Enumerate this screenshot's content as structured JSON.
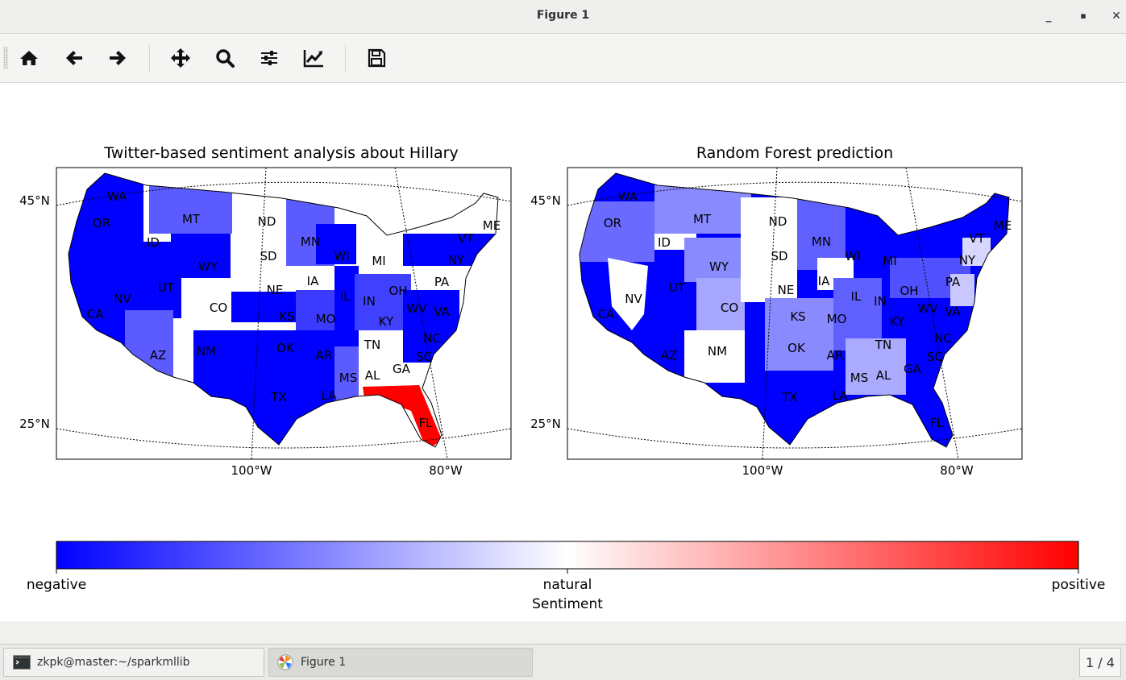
{
  "window": {
    "title": "Figure 1",
    "minimize_glyph": "_",
    "maximize_glyph": "▪",
    "close_glyph": "✕"
  },
  "toolbar": {
    "buttons": [
      {
        "name": "home-icon",
        "tooltip": "Home"
      },
      {
        "name": "back-arrow-icon",
        "tooltip": "Back"
      },
      {
        "name": "forward-arrow-icon",
        "tooltip": "Forward"
      },
      {
        "name": "pan-move-icon",
        "tooltip": "Pan"
      },
      {
        "name": "zoom-magnifier-icon",
        "tooltip": "Zoom"
      },
      {
        "name": "subplots-sliders-icon",
        "tooltip": "Subplots"
      },
      {
        "name": "edit-axes-chart-icon",
        "tooltip": "Customize"
      },
      {
        "name": "save-floppy-icon",
        "tooltip": "Save"
      }
    ]
  },
  "left_map": {
    "title": "Twitter-based sentiment analysis about Hillary",
    "lat_labels": [
      "45°N",
      "25°N"
    ],
    "lon_labels": [
      "100°W",
      "80°W"
    ],
    "state_labels": [
      "WA",
      "OR",
      "ID",
      "MT",
      "ND",
      "MN",
      "WI",
      "MI",
      "SD",
      "WY",
      "NV",
      "UT",
      "CO",
      "NE",
      "IA",
      "IL",
      "IN",
      "OH",
      "PA",
      "NY",
      "VT",
      "ME",
      "KS",
      "MO",
      "KY",
      "WV",
      "VA",
      "CA",
      "AZ",
      "NM",
      "OK",
      "AR",
      "TN",
      "NC",
      "SC",
      "MS",
      "AL",
      "GA",
      "TX",
      "LA",
      "FL"
    ]
  },
  "right_map": {
    "title": "Random Forest prediction",
    "lat_labels": [
      "45°N",
      "25°N"
    ],
    "lon_labels": [
      "100°W",
      "80°W"
    ],
    "state_labels": [
      "WA",
      "OR",
      "ID",
      "MT",
      "ND",
      "MN",
      "WI",
      "MI",
      "SD",
      "WY",
      "NV",
      "UT",
      "CO",
      "NE",
      "IA",
      "IL",
      "IN",
      "OH",
      "PA",
      "NY",
      "VT",
      "ME",
      "KS",
      "MO",
      "KY",
      "WV",
      "VA",
      "CA",
      "AZ",
      "NM",
      "OK",
      "AR",
      "TN",
      "NC",
      "SC",
      "MS",
      "AL",
      "GA",
      "TX",
      "LA",
      "FL"
    ]
  },
  "colorbar": {
    "label": "Sentiment",
    "tick_left": "negative",
    "tick_mid": "natural",
    "tick_right": "positive",
    "colors": {
      "negative": "#0000ff",
      "natural": "#ffffff",
      "positive": "#ff0000"
    }
  },
  "taskbar": {
    "items": [
      {
        "label": "zkpk@master:~/sparkmllib",
        "icon": "terminal-icon"
      },
      {
        "label": "Figure 1",
        "icon": "matplotlib-icon"
      }
    ],
    "pager": "1 / 4"
  }
}
